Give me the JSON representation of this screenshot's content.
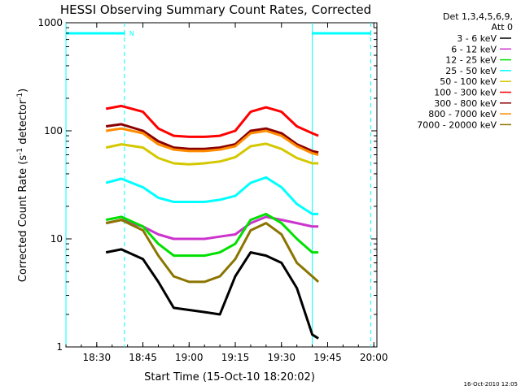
{
  "chart_data": {
    "type": "line",
    "title": "HESSI Observing Summary Count Rates, Corrected",
    "xlabel": "Start Time (15-Oct-10 18:20:02)",
    "ylabel": "Corrected Count Rate (s⁻¹ detector⁻¹)",
    "ylabel_main": "Corrected Count Rate (s",
    "ylabel_sup1": "-1",
    "ylabel_mid": " detector",
    "ylabel_sup2": "-1",
    "ylabel_end": ")",
    "y_scale": "log",
    "ylim": [
      1,
      1000
    ],
    "xlim": [
      "18:20",
      "20:01"
    ],
    "x_ticks": [
      "18:30",
      "18:45",
      "19:00",
      "19:15",
      "19:30",
      "19:45",
      "20:00"
    ],
    "y_ticks": [
      "1",
      "10",
      "100",
      "1000"
    ],
    "legend_header": [
      "Det 1,3,4,5,6,9,",
      "Att 0"
    ],
    "legend_placement": "right-outside",
    "timestamp": "16-Oct-2010 12:05",
    "markers": {
      "night_flag_label": "N",
      "night_bar_1": [
        "18:20",
        "18:39"
      ],
      "night_bar_2": [
        "19:40",
        "19:59"
      ],
      "vlines_dashed": [
        "18:39",
        "19:59"
      ],
      "vlines_solid": [
        "18:20",
        "19:40"
      ]
    },
    "x": [
      "18:33",
      "18:38",
      "18:45",
      "18:50",
      "18:55",
      "19:00",
      "19:05",
      "19:10",
      "19:15",
      "19:20",
      "19:25",
      "19:30",
      "19:35",
      "19:40",
      "19:42"
    ],
    "series": [
      {
        "name": "3 - 6 keV",
        "color": "#000000",
        "values": [
          7.5,
          8,
          6.5,
          4,
          2.3,
          2.2,
          2.1,
          2.0,
          4.5,
          7.5,
          7.0,
          6.0,
          3.5,
          1.3,
          1.2
        ]
      },
      {
        "name": "6 - 12 keV",
        "color": "#cc33cc",
        "values": [
          14,
          15,
          13,
          11,
          10,
          10,
          10,
          10.5,
          11,
          14,
          16,
          15,
          14,
          13,
          13
        ]
      },
      {
        "name": "12 - 25 keV",
        "color": "#00e000",
        "values": [
          15,
          16,
          13,
          9,
          7,
          7,
          7,
          7.5,
          9,
          15,
          17,
          14,
          10,
          7.5,
          7.5
        ]
      },
      {
        "name": "25 - 50 keV",
        "color": "#00ffff",
        "values": [
          33,
          36,
          30,
          24,
          22,
          22,
          22,
          23,
          25,
          33,
          37,
          30,
          21,
          17,
          17
        ]
      },
      {
        "name": "50 - 100 keV",
        "color": "#d4c800",
        "values": [
          70,
          75,
          70,
          56,
          50,
          49,
          50,
          52,
          57,
          72,
          76,
          68,
          56,
          50,
          50
        ]
      },
      {
        "name": "100 - 300 keV",
        "color": "#ff0000",
        "values": [
          160,
          170,
          150,
          105,
          90,
          88,
          88,
          90,
          100,
          150,
          165,
          150,
          110,
          95,
          90
        ]
      },
      {
        "name": "300 - 800 keV",
        "color": "#8b0000",
        "values": [
          110,
          115,
          100,
          80,
          70,
          68,
          68,
          70,
          75,
          100,
          105,
          95,
          75,
          65,
          63
        ]
      },
      {
        "name": "800 - 7000 keV",
        "color": "#ff8c00",
        "values": [
          100,
          105,
          95,
          75,
          67,
          65,
          65,
          67,
          72,
          95,
          100,
          90,
          72,
          62,
          60
        ]
      },
      {
        "name": "7000 - 20000 keV",
        "color": "#8b7500",
        "values": [
          14,
          15,
          12,
          7,
          4.5,
          4,
          4,
          4.5,
          6.5,
          12,
          14,
          11,
          6,
          4.5,
          4
        ]
      }
    ]
  }
}
